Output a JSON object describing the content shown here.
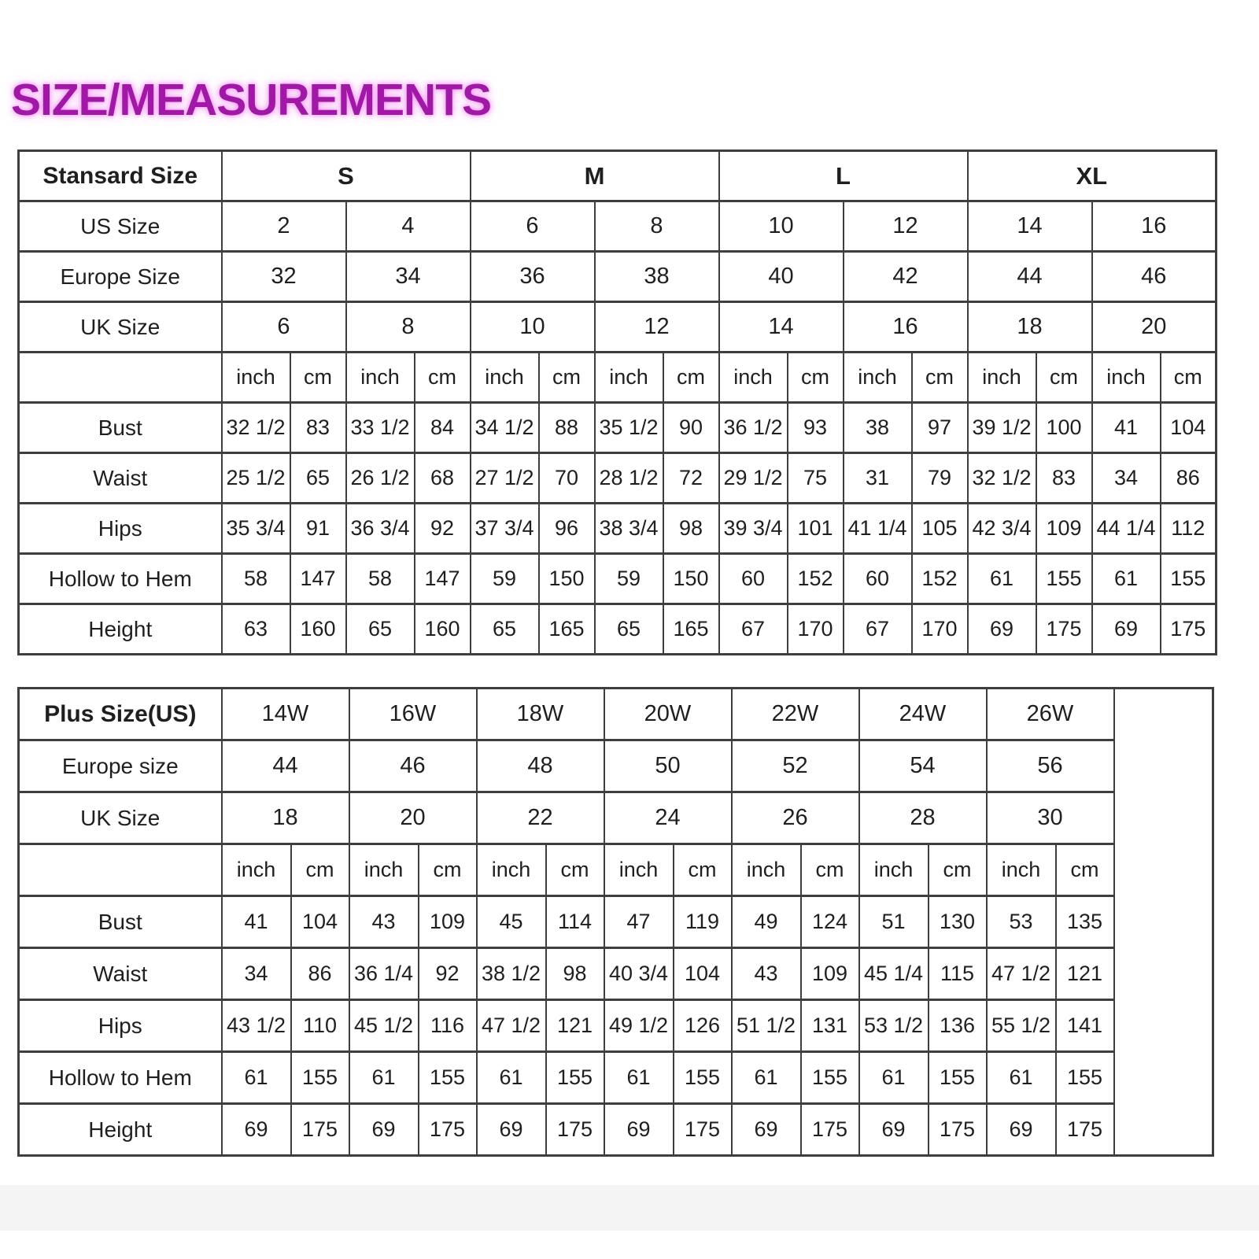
{
  "title": "SIZE/MEASUREMENTS",
  "colors": {
    "title": "#A018A5",
    "title_glow": "#F06EF0",
    "border": "#3E3E3E",
    "text": "#1F1F1F",
    "background": "#FFFFFF"
  },
  "standard_table": {
    "corner_label": "Stansard Size",
    "group_headers": [
      "S",
      "M",
      "L",
      "XL"
    ],
    "size_rows": [
      {
        "label": "US Size",
        "cells": [
          "2",
          "4",
          "6",
          "8",
          "10",
          "12",
          "14",
          "16"
        ]
      },
      {
        "label": "Europe Size",
        "cells": [
          "32",
          "34",
          "36",
          "38",
          "40",
          "42",
          "44",
          "46"
        ]
      },
      {
        "label": "UK Size",
        "cells": [
          "6",
          "8",
          "10",
          "12",
          "14",
          "16",
          "18",
          "20"
        ]
      }
    ],
    "unit_headers": [
      "inch",
      "cm",
      "inch",
      "cm",
      "inch",
      "cm",
      "inch",
      "cm",
      "inch",
      "cm",
      "inch",
      "cm",
      "inch",
      "cm",
      "inch",
      "cm"
    ],
    "measurement_rows": [
      {
        "label": "Bust",
        "cells": [
          "32 1/2",
          "83",
          "33 1/2",
          "84",
          "34 1/2",
          "88",
          "35 1/2",
          "90",
          "36 1/2",
          "93",
          "38",
          "97",
          "39 1/2",
          "100",
          "41",
          "104"
        ]
      },
      {
        "label": "Waist",
        "cells": [
          "25 1/2",
          "65",
          "26 1/2",
          "68",
          "27 1/2",
          "70",
          "28 1/2",
          "72",
          "29 1/2",
          "75",
          "31",
          "79",
          "32 1/2",
          "83",
          "34",
          "86"
        ]
      },
      {
        "label": "Hips",
        "cells": [
          "35 3/4",
          "91",
          "36 3/4",
          "92",
          "37 3/4",
          "96",
          "38 3/4",
          "98",
          "39 3/4",
          "101",
          "41 1/4",
          "105",
          "42 3/4",
          "109",
          "44 1/4",
          "112"
        ]
      },
      {
        "label": "Hollow to Hem",
        "cells": [
          "58",
          "147",
          "58",
          "147",
          "59",
          "150",
          "59",
          "150",
          "60",
          "152",
          "60",
          "152",
          "61",
          "155",
          "61",
          "155"
        ]
      },
      {
        "label": "Height",
        "cells": [
          "63",
          "160",
          "65",
          "160",
          "65",
          "165",
          "65",
          "165",
          "67",
          "170",
          "67",
          "170",
          "69",
          "175",
          "69",
          "175"
        ]
      }
    ]
  },
  "plus_table": {
    "corner_label": "Plus Size(US)",
    "group_headers": [
      "14W",
      "16W",
      "18W",
      "20W",
      "22W",
      "24W",
      "26W"
    ],
    "size_rows": [
      {
        "label": "Europe size",
        "cells": [
          "44",
          "46",
          "48",
          "50",
          "52",
          "54",
          "56"
        ]
      },
      {
        "label": "UK Size",
        "cells": [
          "18",
          "20",
          "22",
          "24",
          "26",
          "28",
          "30"
        ]
      }
    ],
    "unit_headers": [
      "inch",
      "cm",
      "inch",
      "cm",
      "inch",
      "cm",
      "inch",
      "cm",
      "inch",
      "cm",
      "inch",
      "cm",
      "inch",
      "cm"
    ],
    "measurement_rows": [
      {
        "label": "Bust",
        "cells": [
          "41",
          "104",
          "43",
          "109",
          "45",
          "114",
          "47",
          "119",
          "49",
          "124",
          "51",
          "130",
          "53",
          "135"
        ]
      },
      {
        "label": "Waist",
        "cells": [
          "34",
          "86",
          "36 1/4",
          "92",
          "38 1/2",
          "98",
          "40 3/4",
          "104",
          "43",
          "109",
          "45 1/4",
          "115",
          "47 1/2",
          "121"
        ]
      },
      {
        "label": "Hips",
        "cells": [
          "43 1/2",
          "110",
          "45 1/2",
          "116",
          "47 1/2",
          "121",
          "49 1/2",
          "126",
          "51 1/2",
          "131",
          "53 1/2",
          "136",
          "55 1/2",
          "141"
        ]
      },
      {
        "label": "Hollow to Hem",
        "cells": [
          "61",
          "155",
          "61",
          "155",
          "61",
          "155",
          "61",
          "155",
          "61",
          "155",
          "61",
          "155",
          "61",
          "155"
        ]
      },
      {
        "label": "Height",
        "cells": [
          "69",
          "175",
          "69",
          "175",
          "69",
          "175",
          "69",
          "175",
          "69",
          "175",
          "69",
          "175",
          "69",
          "175"
        ]
      }
    ]
  }
}
